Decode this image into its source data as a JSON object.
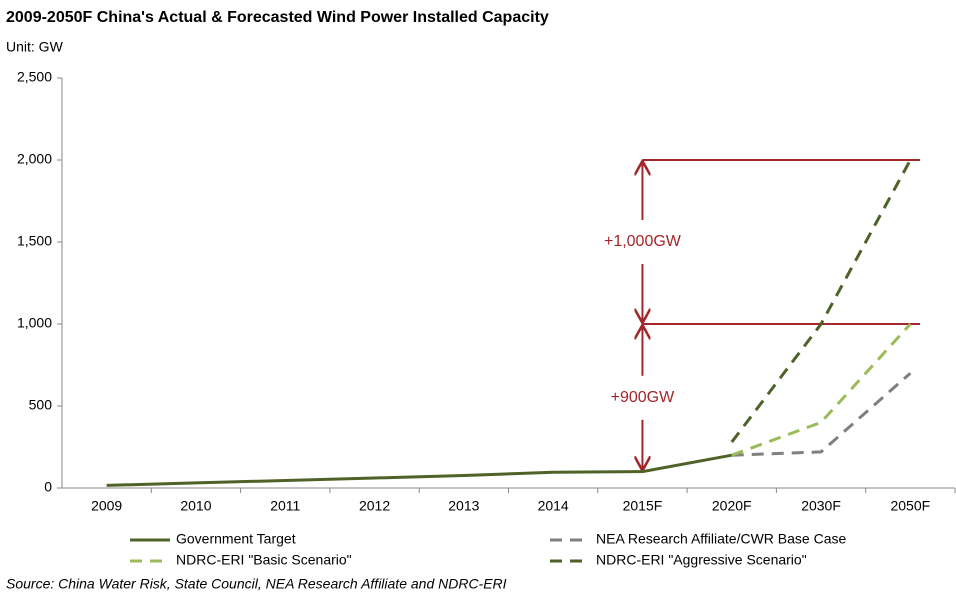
{
  "chart_data": {
    "type": "line",
    "title": "2009-2050F China's Actual & Forecasted Wind Power Installed Capacity",
    "unit_label": "Unit: GW",
    "source": "Source: China Water Risk, State Council, NEA Research Affiliate and NDRC-ERI",
    "categories": [
      "2009",
      "2010",
      "2011",
      "2012",
      "2013",
      "2014",
      "2015F",
      "2020F",
      "2030F",
      "2050F"
    ],
    "series": [
      {
        "name": "Government Target",
        "color": "#4f6228",
        "dash": "solid",
        "values": [
          16,
          31,
          46,
          61,
          76,
          96,
          100,
          200,
          null,
          null
        ]
      },
      {
        "name": "NEA Research Affiliate/CWR Base Case",
        "color": "#7f7f7f",
        "dash": "dashed",
        "values": [
          null,
          null,
          null,
          null,
          null,
          null,
          null,
          200,
          220,
          700
        ]
      },
      {
        "name": "NDRC-ERI \"Basic Scenario\"",
        "color": "#9bbb59",
        "dash": "dashed",
        "values": [
          null,
          null,
          null,
          null,
          null,
          null,
          null,
          200,
          400,
          1000
        ]
      },
      {
        "name": "NDRC-ERI \"Aggressive Scenario\"",
        "color": "#4f6228",
        "dash": "dashed",
        "values": [
          null,
          null,
          null,
          null,
          null,
          null,
          null,
          280,
          1000,
          2000
        ]
      }
    ],
    "ylim": [
      0,
      2500
    ],
    "yticks": [
      0,
      500,
      {
        "value": 1000,
        "label": "1,000"
      },
      {
        "value": 1500,
        "label": "1,500"
      },
      {
        "value": 2000,
        "label": "2,000"
      },
      {
        "value": 2500,
        "label": "2,500"
      }
    ],
    "grid": false,
    "annotations": [
      {
        "text": "+900GW",
        "from": 100,
        "to": 1000
      },
      {
        "text": "+1,000GW",
        "from": 1000,
        "to": 2000
      }
    ],
    "annotation_color": "#a3262a"
  }
}
